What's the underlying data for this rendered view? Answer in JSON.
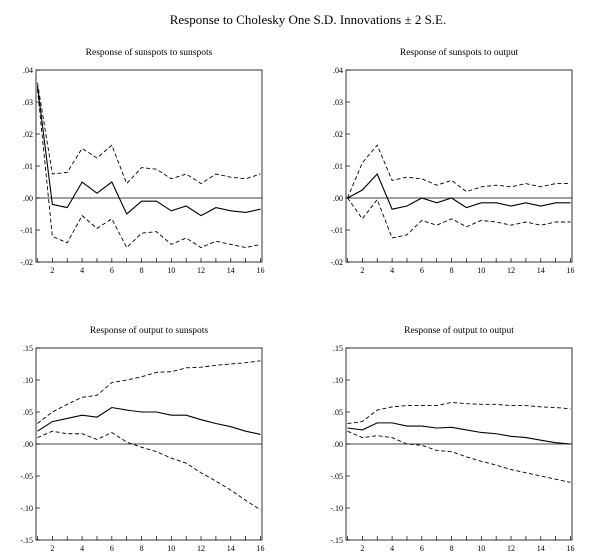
{
  "title": "Response to Cholesky One S.D. Innovations ± 2 S.E.",
  "chart_data": [
    {
      "type": "line",
      "title": "Response of sunspots to sunspots",
      "x": [
        1,
        2,
        3,
        4,
        5,
        6,
        7,
        8,
        9,
        10,
        11,
        12,
        13,
        14,
        15,
        16
      ],
      "ylim": [
        -0.02,
        0.04
      ],
      "yticks": [
        ".04",
        ".03",
        ".02",
        ".01",
        ".00",
        "-.01",
        "-.02"
      ],
      "ytick_values": [
        0.04,
        0.03,
        0.02,
        0.01,
        0.0,
        -0.01,
        -0.02
      ],
      "xticks": [
        2,
        4,
        6,
        8,
        10,
        12,
        14,
        16
      ],
      "series": [
        {
          "role": "response",
          "values": [
            0.035,
            -0.002,
            -0.003,
            0.005,
            0.0015,
            0.005,
            -0.005,
            -0.001,
            -0.001,
            -0.004,
            -0.0025,
            -0.0055,
            -0.003,
            -0.004,
            -0.0045,
            -0.0035
          ]
        },
        {
          "role": "upper",
          "values": [
            0.036,
            0.0075,
            0.008,
            0.0155,
            0.0125,
            0.0165,
            0.0045,
            0.0095,
            0.009,
            0.006,
            0.0075,
            0.0045,
            0.0075,
            0.0065,
            0.006,
            0.0075
          ]
        },
        {
          "role": "lower",
          "values": [
            0.034,
            -0.012,
            -0.014,
            -0.0055,
            -0.0095,
            -0.0065,
            -0.0155,
            -0.011,
            -0.0105,
            -0.0145,
            -0.0125,
            -0.0155,
            -0.0135,
            -0.0145,
            -0.0155,
            -0.0145
          ]
        }
      ]
    },
    {
      "type": "line",
      "title": "Response of sunspots to output",
      "x": [
        1,
        2,
        3,
        4,
        5,
        6,
        7,
        8,
        9,
        10,
        11,
        12,
        13,
        14,
        15,
        16
      ],
      "ylim": [
        -0.02,
        0.04
      ],
      "yticks": [
        ".04",
        ".03",
        ".02",
        ".01",
        ".00",
        "-.01",
        "-.02"
      ],
      "ytick_values": [
        0.04,
        0.03,
        0.02,
        0.01,
        0.0,
        -0.01,
        -0.02
      ],
      "xticks": [
        2,
        4,
        6,
        8,
        10,
        12,
        14,
        16
      ],
      "series": [
        {
          "role": "response",
          "values": [
            0.0,
            0.0025,
            0.0075,
            -0.0035,
            -0.0025,
            0.0,
            -0.0015,
            0.0,
            -0.003,
            -0.0015,
            -0.0015,
            -0.0025,
            -0.0015,
            -0.0025,
            -0.0015,
            -0.0015
          ]
        },
        {
          "role": "upper",
          "values": [
            0.0,
            0.011,
            0.0165,
            0.0055,
            0.0065,
            0.006,
            0.004,
            0.0055,
            0.002,
            0.0035,
            0.004,
            0.0035,
            0.0045,
            0.0035,
            0.0045,
            0.0045
          ]
        },
        {
          "role": "lower",
          "values": [
            0.0,
            -0.0065,
            -0.0005,
            -0.0125,
            -0.0115,
            -0.007,
            -0.0085,
            -0.0065,
            -0.009,
            -0.007,
            -0.0075,
            -0.0085,
            -0.0075,
            -0.0085,
            -0.0075,
            -0.0075
          ]
        }
      ]
    },
    {
      "type": "line",
      "title": "Response of output to sunspots",
      "x": [
        1,
        2,
        3,
        4,
        5,
        6,
        7,
        8,
        9,
        10,
        11,
        12,
        13,
        14,
        15,
        16
      ],
      "ylim": [
        -0.15,
        0.15
      ],
      "yticks": [
        ".15",
        ".10",
        ".05",
        ".00",
        "-.05",
        "-.10",
        "-.15"
      ],
      "ytick_values": [
        0.15,
        0.1,
        0.05,
        0.0,
        -0.05,
        -0.1,
        -0.15
      ],
      "xticks": [
        2,
        4,
        6,
        8,
        10,
        12,
        14,
        16
      ],
      "series": [
        {
          "role": "response",
          "values": [
            0.02,
            0.035,
            0.04,
            0.045,
            0.042,
            0.057,
            0.053,
            0.05,
            0.05,
            0.045,
            0.045,
            0.038,
            0.032,
            0.027,
            0.02,
            0.015
          ]
        },
        {
          "role": "upper",
          "values": [
            0.032,
            0.05,
            0.062,
            0.073,
            0.076,
            0.096,
            0.1,
            0.105,
            0.112,
            0.113,
            0.119,
            0.12,
            0.123,
            0.125,
            0.127,
            0.13
          ]
        },
        {
          "role": "lower",
          "values": [
            0.01,
            0.02,
            0.016,
            0.016,
            0.007,
            0.018,
            0.003,
            -0.005,
            -0.012,
            -0.022,
            -0.03,
            -0.045,
            -0.058,
            -0.072,
            -0.088,
            -0.103
          ]
        }
      ]
    },
    {
      "type": "line",
      "title": "Response of output to output",
      "x": [
        1,
        2,
        3,
        4,
        5,
        6,
        7,
        8,
        9,
        10,
        11,
        12,
        13,
        14,
        15,
        16
      ],
      "ylim": [
        -0.15,
        0.15
      ],
      "yticks": [
        ".15",
        ".10",
        ".05",
        ".00",
        "-.05",
        "-.10",
        "-.15"
      ],
      "ytick_values": [
        0.15,
        0.1,
        0.05,
        0.0,
        -0.05,
        -0.1,
        -0.15
      ],
      "xticks": [
        2,
        4,
        6,
        8,
        10,
        12,
        14,
        16
      ],
      "series": [
        {
          "role": "response",
          "values": [
            0.025,
            0.022,
            0.033,
            0.033,
            0.028,
            0.028,
            0.025,
            0.026,
            0.022,
            0.018,
            0.016,
            0.012,
            0.01,
            0.006,
            0.002,
            0.0
          ]
        },
        {
          "role": "upper",
          "values": [
            0.032,
            0.035,
            0.053,
            0.058,
            0.06,
            0.06,
            0.06,
            0.065,
            0.063,
            0.062,
            0.062,
            0.06,
            0.06,
            0.058,
            0.057,
            0.055
          ]
        },
        {
          "role": "lower",
          "values": [
            0.02,
            0.01,
            0.013,
            0.01,
            0.0,
            -0.002,
            -0.01,
            -0.012,
            -0.02,
            -0.027,
            -0.033,
            -0.04,
            -0.045,
            -0.05,
            -0.055,
            -0.06
          ]
        }
      ]
    }
  ]
}
